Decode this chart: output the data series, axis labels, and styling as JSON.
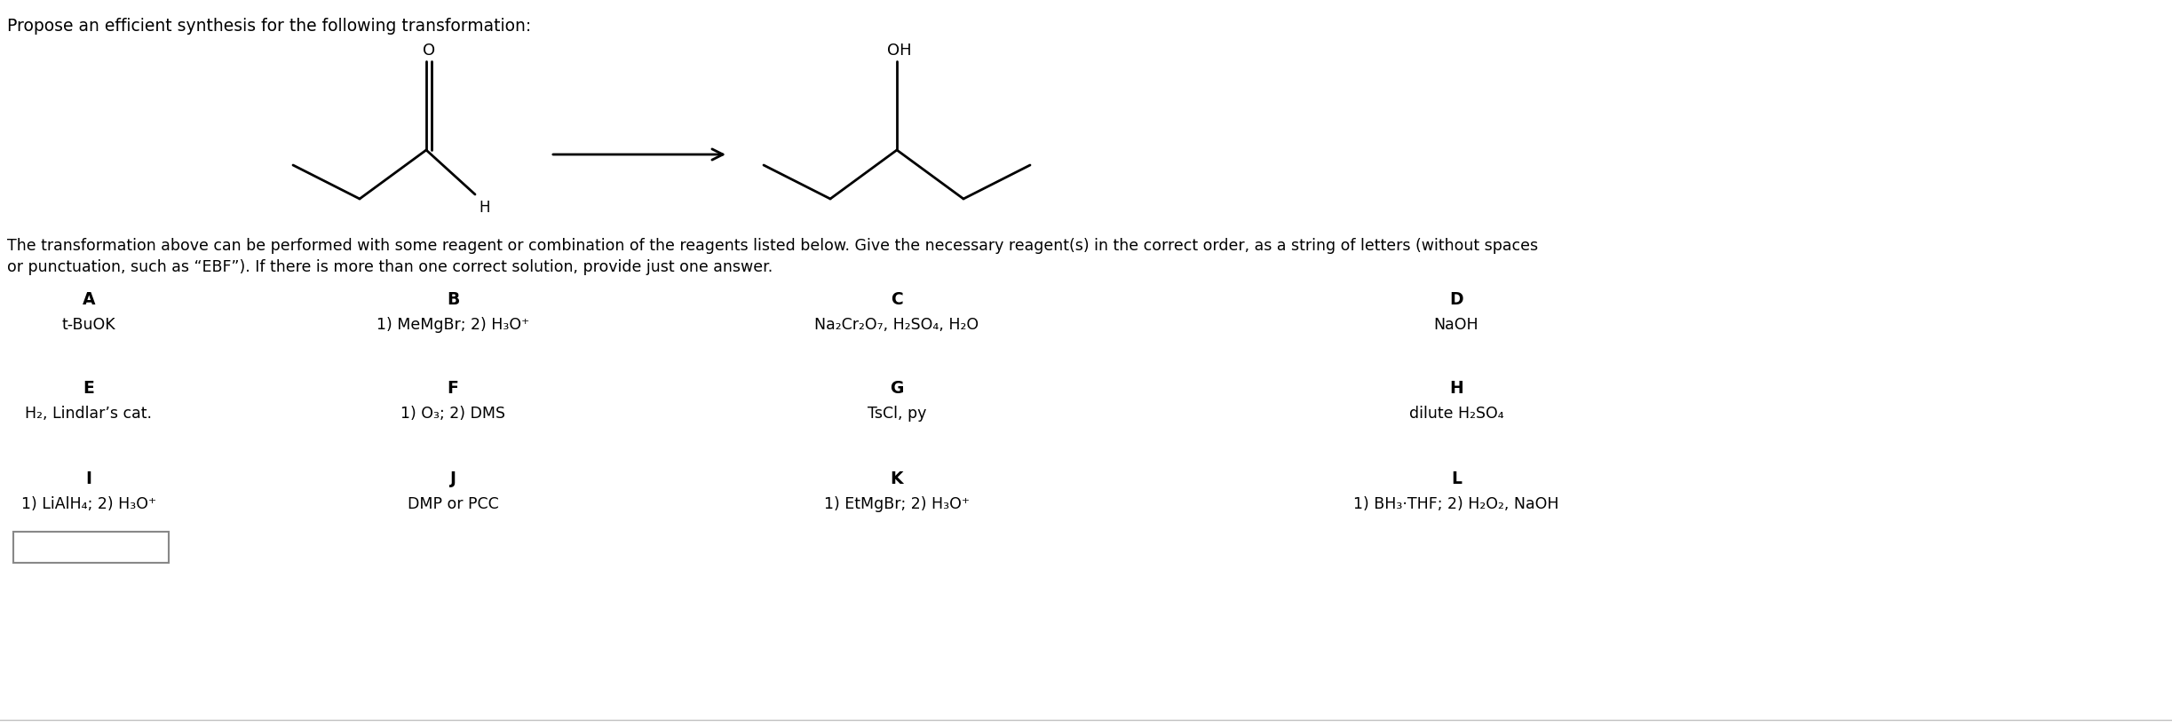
{
  "title": "Propose an efficient synthesis for the following transformation:",
  "description_line1": "The transformation above can be performed with some reagent or combination of the reagents listed below. Give the necessary reagent(s) in the correct order, as a string of letters (without spaces",
  "description_line2": "or punctuation, such as “EBF”). If there is more than one correct solution, provide just one answer.",
  "reagents": [
    {
      "label": "A",
      "text": "t-BuOK"
    },
    {
      "label": "B",
      "text": "1) MeMgBr; 2) H₃O⁺"
    },
    {
      "label": "C",
      "text": "Na₂Cr₂O₇, H₂SO₄, H₂O"
    },
    {
      "label": "D",
      "text": "NaOH"
    },
    {
      "label": "E",
      "text": "H₂, Lindlar’s cat."
    },
    {
      "label": "F",
      "text": "1) O₃; 2) DMS"
    },
    {
      "label": "G",
      "text": "TsCl, py"
    },
    {
      "label": "H",
      "text": "dilute H₂SO₄"
    },
    {
      "label": "I",
      "text": "1) LiAlH₄; 2) H₃O⁺"
    },
    {
      "label": "J",
      "text": "DMP or PCC"
    },
    {
      "label": "K",
      "text": "1) EtMgBr; 2) H₃O⁺"
    },
    {
      "label": "L",
      "text": "1) BH₃·THF; 2) H₂O₂, NaOH"
    }
  ],
  "bg_color": "#ffffff",
  "text_color": "#000000",
  "lw": 2.0,
  "mol_color": "#000000",
  "font_size_title": 13.5,
  "font_size_desc": 12.5,
  "font_size_label": 13.5,
  "font_size_reagent": 12.5,
  "font_size_mol": 13.0
}
